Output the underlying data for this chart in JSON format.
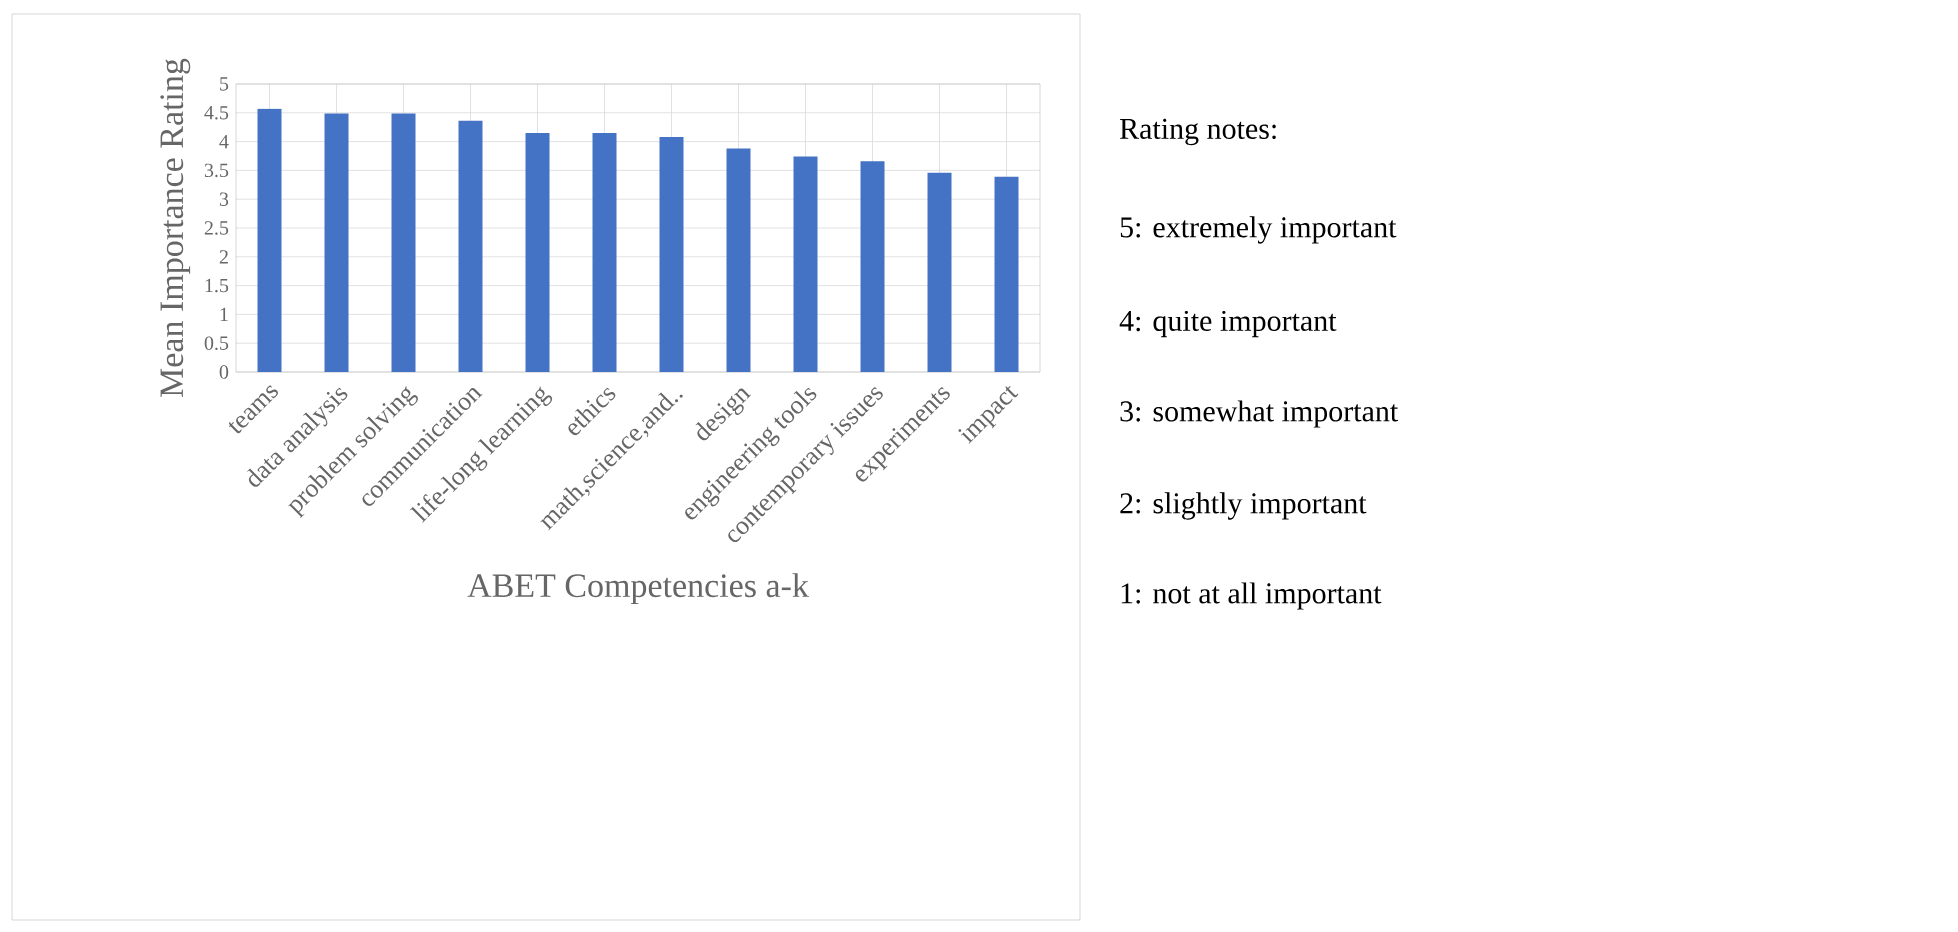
{
  "chart_data": {
    "type": "bar",
    "xlabel": "ABET Competencies a-k",
    "ylabel": "Mean Importance Rating",
    "categories": [
      "teams",
      "data analysis",
      "problem solving",
      "communication",
      "life-long learning",
      "ethics",
      "math,science,and..",
      "design",
      "engineering tools",
      "contemporary issues",
      "experiments",
      "impact"
    ],
    "values": [
      4.57,
      4.49,
      4.49,
      4.36,
      4.15,
      4.15,
      4.08,
      3.88,
      3.74,
      3.66,
      3.46,
      3.39
    ],
    "color": "#4472c4",
    "ylim": [
      0,
      5
    ],
    "yticks": [
      0,
      0.5,
      1,
      1.5,
      2,
      2.5,
      3,
      3.5,
      4,
      4.5,
      5
    ],
    "grid": true,
    "annotations": [
      "Rating notes:",
      "5: extremely important",
      "4: quite important",
      "3: somewhat important",
      "2: slightly important",
      "1: not at all important"
    ]
  }
}
